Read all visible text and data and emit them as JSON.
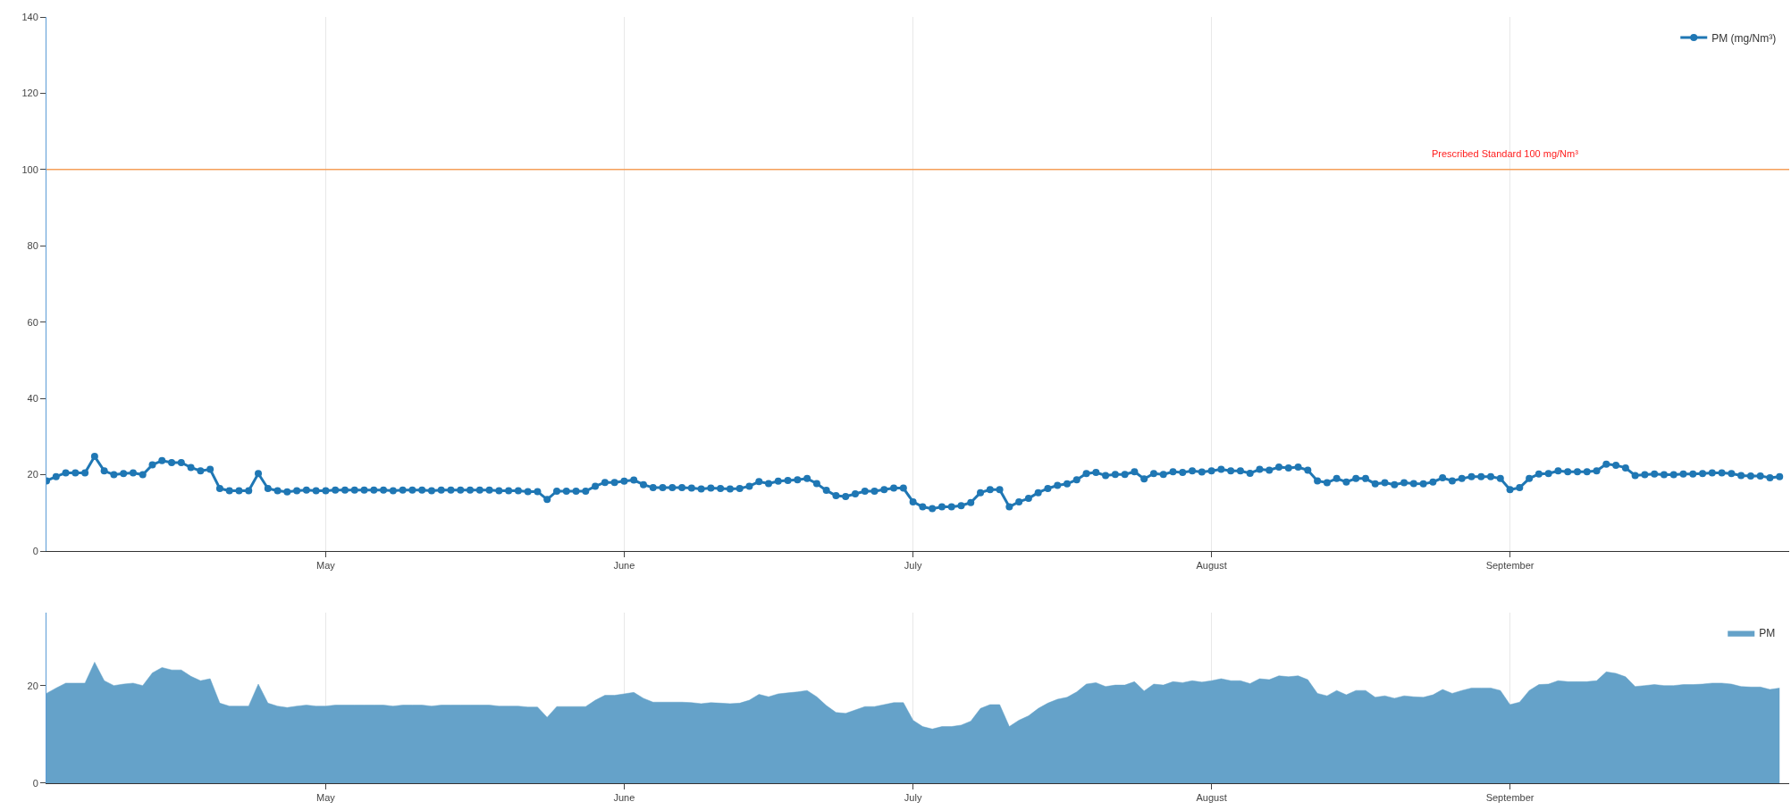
{
  "chart_data": [
    {
      "type": "line",
      "marker": "circle",
      "grid": "x",
      "legend": "top right",
      "x": [
        "--04-02",
        "--04-03",
        "--04-04",
        "--04-05",
        "--04-06",
        "--04-07",
        "--04-08",
        "--04-09",
        "--04-10",
        "--04-11",
        "--04-12",
        "--04-13",
        "--04-14",
        "--04-15",
        "--04-16",
        "--04-17",
        "--04-18",
        "--04-19",
        "--04-20",
        "--04-21",
        "--04-22",
        "--04-23",
        "--04-24",
        "--04-25",
        "--04-26",
        "--04-27",
        "--04-28",
        "--04-29",
        "--04-30",
        "--05-01",
        "--05-02",
        "--05-03",
        "--05-04",
        "--05-05",
        "--05-06",
        "--05-07",
        "--05-08",
        "--05-09",
        "--05-10",
        "--05-11",
        "--05-12",
        "--05-13",
        "--05-14",
        "--05-15",
        "--05-16",
        "--05-17",
        "--05-18",
        "--05-19",
        "--05-20",
        "--05-21",
        "--05-22",
        "--05-23",
        "--05-24",
        "--05-25",
        "--05-26",
        "--05-27",
        "--05-28",
        "--05-29",
        "--05-30",
        "--05-31",
        "--06-01",
        "--06-02",
        "--06-03",
        "--06-04",
        "--06-05",
        "--06-06",
        "--06-07",
        "--06-08",
        "--06-09",
        "--06-10",
        "--06-11",
        "--06-12",
        "--06-13",
        "--06-14",
        "--06-15",
        "--06-16",
        "--06-17",
        "--06-18",
        "--06-19",
        "--06-20",
        "--06-21",
        "--06-22",
        "--06-23",
        "--06-24",
        "--06-25",
        "--06-26",
        "--06-27",
        "--06-28",
        "--06-29",
        "--06-30",
        "--07-01",
        "--07-02",
        "--07-03",
        "--07-04",
        "--07-05",
        "--07-06",
        "--07-07",
        "--07-08",
        "--07-09",
        "--07-10",
        "--07-11",
        "--07-12",
        "--07-13",
        "--07-14",
        "--07-15",
        "--07-16",
        "--07-17",
        "--07-18",
        "--07-19",
        "--07-20",
        "--07-21",
        "--07-22",
        "--07-23",
        "--07-24",
        "--07-25",
        "--07-26",
        "--07-27",
        "--07-28",
        "--07-29",
        "--07-30",
        "--07-31",
        "--08-01",
        "--08-02",
        "--08-03",
        "--08-04",
        "--08-05",
        "--08-06",
        "--08-07",
        "--08-08",
        "--08-09",
        "--08-10",
        "--08-11",
        "--08-12",
        "--08-13",
        "--08-14",
        "--08-15",
        "--08-16",
        "--08-17",
        "--08-18",
        "--08-19",
        "--08-20",
        "--08-21",
        "--08-22",
        "--08-23",
        "--08-24",
        "--08-25",
        "--08-26",
        "--08-27",
        "--08-28",
        "--08-29",
        "--08-30",
        "--08-31",
        "--09-01",
        "--09-02",
        "--09-03",
        "--09-04",
        "--09-05",
        "--09-06",
        "--09-07",
        "--09-08",
        "--09-09",
        "--09-10",
        "--09-11",
        "--09-12",
        "--09-13",
        "--09-14",
        "--09-15",
        "--09-16",
        "--09-17",
        "--09-18",
        "--09-19",
        "--09-20",
        "--09-21",
        "--09-22",
        "--09-23",
        "--09-24",
        "--09-25",
        "--09-26",
        "--09-27",
        "--09-28",
        "--09-29"
      ],
      "series": [
        {
          "name": "PM (mg/Nm³)",
          "color": "#1f77b4",
          "values": [
            18.4,
            19.5,
            20.5,
            20.5,
            20.5,
            24.8,
            21,
            20,
            20.3,
            20.5,
            20,
            22.6,
            23.7,
            23.2,
            23.2,
            21.9,
            21,
            21.4,
            16.4,
            15.8,
            15.8,
            15.8,
            20.3,
            16.4,
            15.8,
            15.5,
            15.8,
            16,
            15.8,
            15.8,
            16,
            16,
            16,
            16,
            16,
            16,
            15.8,
            16,
            16,
            16,
            15.8,
            16,
            16,
            16,
            16,
            16,
            16,
            15.8,
            15.8,
            15.8,
            15.6,
            15.6,
            13.5,
            15.7,
            15.7,
            15.7,
            15.7,
            17,
            18,
            18,
            18.3,
            18.6,
            17.4,
            16.6,
            16.6,
            16.6,
            16.6,
            16.5,
            16.3,
            16.5,
            16.4,
            16.3,
            16.4,
            17,
            18.2,
            17.7,
            18.3,
            18.5,
            18.7,
            19,
            17.7,
            15.9,
            14.5,
            14.3,
            15,
            15.7,
            15.7,
            16.1,
            16.5,
            16.5,
            12.9,
            11.6,
            11.1,
            11.6,
            11.6,
            11.9,
            12.7,
            15.3,
            16.1,
            16.1,
            11.6,
            12.9,
            13.8,
            15.3,
            16.4,
            17.2,
            17.6,
            18.7,
            20.3,
            20.6,
            19.8,
            20.1,
            20.1,
            20.8,
            18.9,
            20.3,
            20.1,
            20.8,
            20.6,
            21,
            20.7,
            21,
            21.4,
            21,
            21,
            20.4,
            21.4,
            21.2,
            22,
            21.8,
            22,
            21.2,
            18.4,
            17.9,
            19,
            18.1,
            19,
            19,
            17.6,
            17.9,
            17.4,
            17.9,
            17.7,
            17.6,
            18.1,
            19.2,
            18.4,
            19,
            19.5,
            19.5,
            19.5,
            19,
            16.1,
            16.6,
            19,
            20.2,
            20.3,
            21,
            20.8,
            20.8,
            20.8,
            21,
            22.8,
            22.5,
            21.8,
            19.8,
            20,
            20.2,
            20,
            20,
            20.2,
            20.2,
            20.3,
            20.5,
            20.5,
            20.3,
            19.8,
            19.7,
            19.7,
            19.2,
            19.5
          ]
        }
      ],
      "xlim": [
        "--04-02",
        "--09-30"
      ],
      "xticks": [
        {
          "value": "--05-01",
          "label": "May"
        },
        {
          "value": "--06-01",
          "label": "June"
        },
        {
          "value": "--07-01",
          "label": "July"
        },
        {
          "value": "--08-01",
          "label": "August"
        },
        {
          "value": "--09-01",
          "label": "September"
        }
      ],
      "ylim": [
        0,
        140
      ],
      "yticks": [
        0,
        20,
        40,
        60,
        80,
        100,
        120,
        140
      ],
      "ref_lines": [
        {
          "axis": "y",
          "value": 100,
          "label": "Prescribed Standard 100 mg/Nm³",
          "color": "#f5a05a"
        }
      ]
    },
    {
      "type": "area",
      "grid": "x",
      "legend": "top right",
      "x": [
        "--04-02",
        "--04-03",
        "--04-04",
        "--04-05",
        "--04-06",
        "--04-07",
        "--04-08",
        "--04-09",
        "--04-10",
        "--04-11",
        "--04-12",
        "--04-13",
        "--04-14",
        "--04-15",
        "--04-16",
        "--04-17",
        "--04-18",
        "--04-19",
        "--04-20",
        "--04-21",
        "--04-22",
        "--04-23",
        "--04-24",
        "--04-25",
        "--04-26",
        "--04-27",
        "--04-28",
        "--04-29",
        "--04-30",
        "--05-01",
        "--05-02",
        "--05-03",
        "--05-04",
        "--05-05",
        "--05-06",
        "--05-07",
        "--05-08",
        "--05-09",
        "--05-10",
        "--05-11",
        "--05-12",
        "--05-13",
        "--05-14",
        "--05-15",
        "--05-16",
        "--05-17",
        "--05-18",
        "--05-19",
        "--05-20",
        "--05-21",
        "--05-22",
        "--05-23",
        "--05-24",
        "--05-25",
        "--05-26",
        "--05-27",
        "--05-28",
        "--05-29",
        "--05-30",
        "--05-31",
        "--06-01",
        "--06-02",
        "--06-03",
        "--06-04",
        "--06-05",
        "--06-06",
        "--06-07",
        "--06-08",
        "--06-09",
        "--06-10",
        "--06-11",
        "--06-12",
        "--06-13",
        "--06-14",
        "--06-15",
        "--06-16",
        "--06-17",
        "--06-18",
        "--06-19",
        "--06-20",
        "--06-21",
        "--06-22",
        "--06-23",
        "--06-24",
        "--06-25",
        "--06-26",
        "--06-27",
        "--06-28",
        "--06-29",
        "--06-30",
        "--07-01",
        "--07-02",
        "--07-03",
        "--07-04",
        "--07-05",
        "--07-06",
        "--07-07",
        "--07-08",
        "--07-09",
        "--07-10",
        "--07-11",
        "--07-12",
        "--07-13",
        "--07-14",
        "--07-15",
        "--07-16",
        "--07-17",
        "--07-18",
        "--07-19",
        "--07-20",
        "--07-21",
        "--07-22",
        "--07-23",
        "--07-24",
        "--07-25",
        "--07-26",
        "--07-27",
        "--07-28",
        "--07-29",
        "--07-30",
        "--07-31",
        "--08-01",
        "--08-02",
        "--08-03",
        "--08-04",
        "--08-05",
        "--08-06",
        "--08-07",
        "--08-08",
        "--08-09",
        "--08-10",
        "--08-11",
        "--08-12",
        "--08-13",
        "--08-14",
        "--08-15",
        "--08-16",
        "--08-17",
        "--08-18",
        "--08-19",
        "--08-20",
        "--08-21",
        "--08-22",
        "--08-23",
        "--08-24",
        "--08-25",
        "--08-26",
        "--08-27",
        "--08-28",
        "--08-29",
        "--08-30",
        "--08-31",
        "--09-01",
        "--09-02",
        "--09-03",
        "--09-04",
        "--09-05",
        "--09-06",
        "--09-07",
        "--09-08",
        "--09-09",
        "--09-10",
        "--09-11",
        "--09-12",
        "--09-13",
        "--09-14",
        "--09-15",
        "--09-16",
        "--09-17",
        "--09-18",
        "--09-19",
        "--09-20",
        "--09-21",
        "--09-22",
        "--09-23",
        "--09-24",
        "--09-25",
        "--09-26",
        "--09-27",
        "--09-28",
        "--09-29"
      ],
      "series": [
        {
          "name": "PM",
          "color": "#65a2c9",
          "values": [
            18.4,
            19.5,
            20.5,
            20.5,
            20.5,
            24.8,
            21,
            20,
            20.3,
            20.5,
            20,
            22.6,
            23.7,
            23.2,
            23.2,
            21.9,
            21,
            21.4,
            16.4,
            15.8,
            15.8,
            15.8,
            20.3,
            16.4,
            15.8,
            15.5,
            15.8,
            16,
            15.8,
            15.8,
            16,
            16,
            16,
            16,
            16,
            16,
            15.8,
            16,
            16,
            16,
            15.8,
            16,
            16,
            16,
            16,
            16,
            16,
            15.8,
            15.8,
            15.8,
            15.6,
            15.6,
            13.5,
            15.7,
            15.7,
            15.7,
            15.7,
            17,
            18,
            18,
            18.3,
            18.6,
            17.4,
            16.6,
            16.6,
            16.6,
            16.6,
            16.5,
            16.3,
            16.5,
            16.4,
            16.3,
            16.4,
            17,
            18.2,
            17.7,
            18.3,
            18.5,
            18.7,
            19,
            17.7,
            15.9,
            14.5,
            14.3,
            15,
            15.7,
            15.7,
            16.1,
            16.5,
            16.5,
            12.9,
            11.6,
            11.1,
            11.6,
            11.6,
            11.9,
            12.7,
            15.3,
            16.1,
            16.1,
            11.6,
            12.9,
            13.8,
            15.3,
            16.4,
            17.2,
            17.6,
            18.7,
            20.3,
            20.6,
            19.8,
            20.1,
            20.1,
            20.8,
            18.9,
            20.3,
            20.1,
            20.8,
            20.6,
            21,
            20.7,
            21,
            21.4,
            21,
            21,
            20.4,
            21.4,
            21.2,
            22,
            21.8,
            22,
            21.2,
            18.4,
            17.9,
            19,
            18.1,
            19,
            19,
            17.6,
            17.9,
            17.4,
            17.9,
            17.7,
            17.6,
            18.1,
            19.2,
            18.4,
            19,
            19.5,
            19.5,
            19.5,
            19,
            16.1,
            16.6,
            19,
            20.2,
            20.3,
            21,
            20.8,
            20.8,
            20.8,
            21,
            22.8,
            22.5,
            21.8,
            19.8,
            20,
            20.2,
            20,
            20,
            20.2,
            20.2,
            20.3,
            20.5,
            20.5,
            20.3,
            19.8,
            19.7,
            19.7,
            19.2,
            19.5
          ]
        }
      ],
      "xlim": [
        "--04-02",
        "--09-30"
      ],
      "xticks": [
        {
          "value": "--05-01",
          "label": "May"
        },
        {
          "value": "--06-01",
          "label": "June"
        },
        {
          "value": "--07-01",
          "label": "July"
        },
        {
          "value": "--08-01",
          "label": "August"
        },
        {
          "value": "--09-01",
          "label": "September"
        }
      ],
      "ylim": [
        0,
        35
      ],
      "yticks": [
        0,
        20
      ]
    }
  ]
}
